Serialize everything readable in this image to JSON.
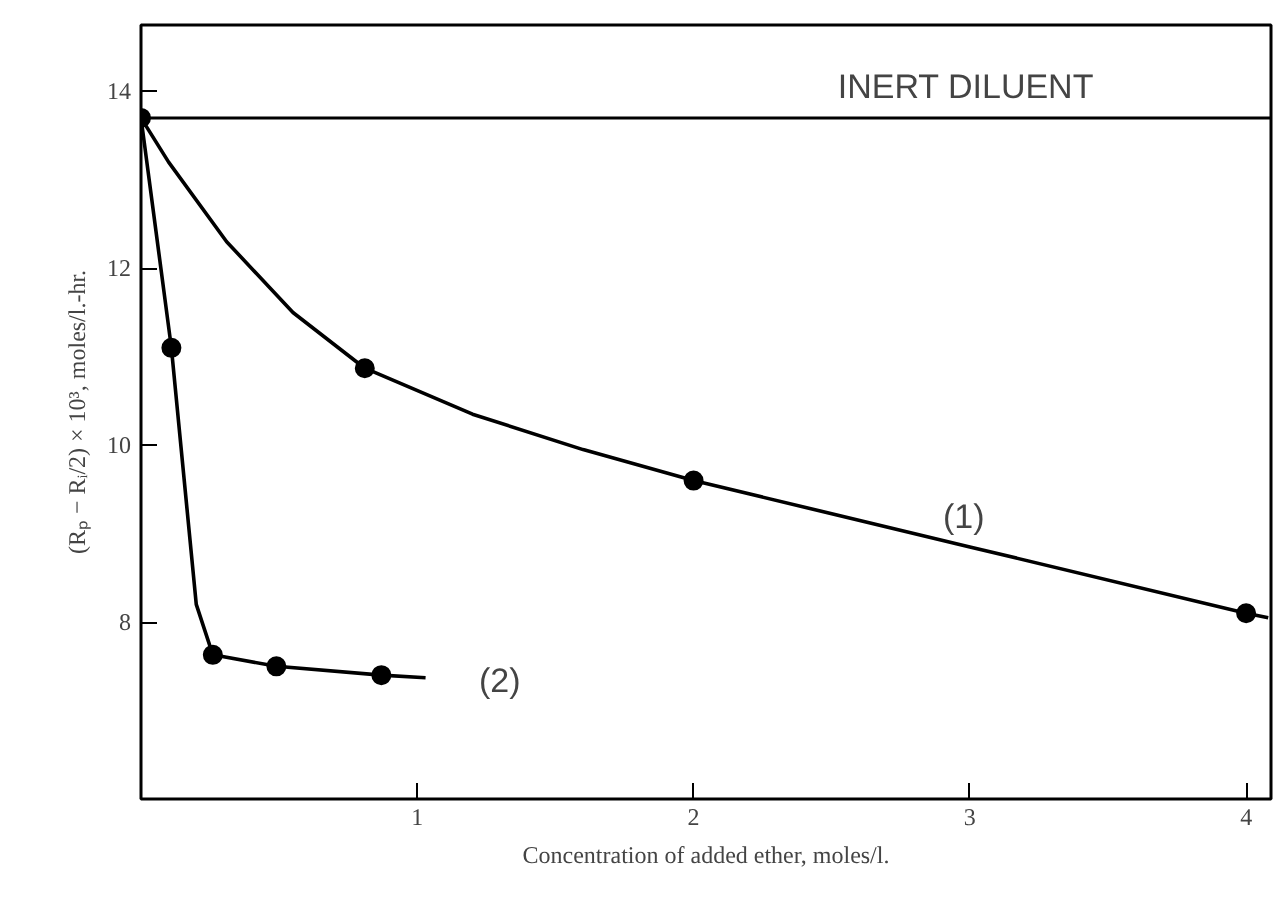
{
  "chart_data": {
    "type": "scatter",
    "xlabel": "Concentration of added ether, moles/l.",
    "ylabel": "(Rₚ − Rᵢ/2) × 10³, moles/l.-hr.",
    "xlim": [
      0,
      4.09
    ],
    "ylim": [
      6.0,
      14.75
    ],
    "xticks": [
      1,
      2,
      3,
      4
    ],
    "yticks": [
      8,
      10,
      12,
      14
    ],
    "grid": false,
    "marker": "circle",
    "series": [
      {
        "type": "line",
        "color": "#000000",
        "marker": "none",
        "x": [
          0,
          0.1,
          0.31,
          0.55,
          0.81,
          1.2,
          1.6,
          2.0,
          3.0,
          4.0,
          4.08
        ],
        "values": [
          13.7,
          13.2,
          12.3,
          11.5,
          10.87,
          10.35,
          9.95,
          9.6,
          8.85,
          8.1,
          8.05
        ]
      },
      {
        "type": "line",
        "color": "#000000",
        "marker": "none",
        "x": [
          0,
          0.11,
          0.2,
          0.26,
          0.49,
          0.87,
          1.03
        ],
        "values": [
          13.7,
          11.1,
          8.2,
          7.63,
          7.5,
          7.4,
          7.37
        ]
      },
      {
        "color": "#000000",
        "x": [
          0,
          0.81,
          2.0,
          4.0
        ],
        "values": [
          13.7,
          10.87,
          9.6,
          8.1
        ]
      },
      {
        "color": "#000000",
        "x": [
          0.11,
          0.26,
          0.49,
          0.87
        ],
        "values": [
          11.1,
          7.63,
          7.5,
          7.4
        ]
      }
    ],
    "ref_lines": [
      {
        "axis": "y",
        "value": 13.7,
        "label": "INERT DILUENT",
        "color": "#000000"
      }
    ],
    "annotations": [
      "(1)",
      "(2)"
    ]
  }
}
